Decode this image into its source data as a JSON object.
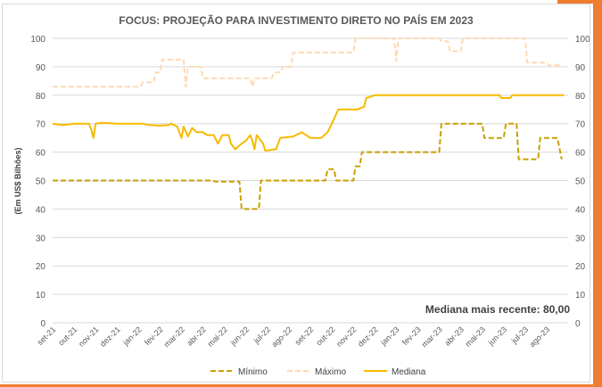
{
  "chart_data": {
    "type": "line",
    "title": "FOCUS: PROJEÇÃO PARA INVESTIMENTO DIRETO NO PAÍS EM 2023",
    "ylabel": "(Em US$ Bilhões)",
    "ylim": [
      0,
      100
    ],
    "yticks": [
      0,
      10,
      20,
      30,
      40,
      50,
      60,
      70,
      80,
      90,
      100
    ],
    "x_labels": [
      "set-21",
      "out-21",
      "nov-21",
      "dez-21",
      "jan-22",
      "fev-22",
      "mar-22",
      "abr-22",
      "mai-22",
      "jun-22",
      "jul-22",
      "ago-22",
      "set-22",
      "out-22",
      "nov-22",
      "dez-22",
      "jan-23",
      "fev-23",
      "mar-23",
      "abr-23",
      "mai-23",
      "jun-23",
      "jul-23",
      "ago-23"
    ],
    "annotation": "Mediana mais recente: 80,00",
    "grid": true,
    "legend": "bottom",
    "series": [
      {
        "name": "Mínimo",
        "color": "#C9A000",
        "style": "dashed",
        "points": [
          [
            0,
            50
          ],
          [
            7.4,
            50
          ],
          [
            7.6,
            49.6
          ],
          [
            8.7,
            49.6
          ],
          [
            8.8,
            40
          ],
          [
            9.6,
            40
          ],
          [
            9.7,
            50
          ],
          [
            12.7,
            50
          ],
          [
            12.8,
            54
          ],
          [
            13.1,
            54
          ],
          [
            13.2,
            50
          ],
          [
            14.0,
            50
          ],
          [
            14.1,
            55
          ],
          [
            14.3,
            55
          ],
          [
            14.4,
            60
          ],
          [
            18.0,
            60
          ],
          [
            18.1,
            70
          ],
          [
            20.0,
            70
          ],
          [
            20.1,
            65
          ],
          [
            21.0,
            65
          ],
          [
            21.1,
            70
          ],
          [
            21.6,
            70
          ],
          [
            21.7,
            57.5
          ],
          [
            22.6,
            57.5
          ],
          [
            22.7,
            65
          ],
          [
            23.5,
            65
          ],
          [
            23.7,
            57.5
          ]
        ]
      },
      {
        "name": "Máximo",
        "color": "#FFD9B3",
        "style": "dashed",
        "points": [
          [
            0,
            83
          ],
          [
            4.1,
            83
          ],
          [
            4.2,
            84.5
          ],
          [
            4.7,
            84.5
          ],
          [
            4.8,
            88
          ],
          [
            5.0,
            88
          ],
          [
            5.1,
            92.5
          ],
          [
            6.1,
            92.5
          ],
          [
            6.2,
            83
          ],
          [
            6.3,
            90
          ],
          [
            6.9,
            90
          ],
          [
            7.0,
            86
          ],
          [
            9.2,
            86
          ],
          [
            9.3,
            83
          ],
          [
            9.4,
            86
          ],
          [
            10.2,
            86
          ],
          [
            10.3,
            88
          ],
          [
            10.6,
            88
          ],
          [
            10.7,
            90
          ],
          [
            11.1,
            90
          ],
          [
            11.2,
            95
          ],
          [
            14.0,
            95
          ],
          [
            14.1,
            100
          ],
          [
            15.9,
            100
          ],
          [
            16.0,
            92
          ],
          [
            16.1,
            100
          ],
          [
            18.0,
            100
          ],
          [
            18.1,
            99
          ],
          [
            18.4,
            99
          ],
          [
            18.5,
            95.5
          ],
          [
            19.0,
            95.5
          ],
          [
            19.1,
            100
          ],
          [
            22.0,
            100
          ],
          [
            22.1,
            91.5
          ],
          [
            23.0,
            91.5
          ],
          [
            23.1,
            90.5
          ],
          [
            23.6,
            90.5
          ],
          [
            23.7,
            90
          ]
        ]
      },
      {
        "name": "Mediana",
        "color": "#F5BA00",
        "style": "solid",
        "points": [
          [
            0,
            70
          ],
          [
            0.5,
            69.5
          ],
          [
            1.0,
            70
          ],
          [
            1.7,
            70
          ],
          [
            1.8,
            68
          ],
          [
            1.9,
            65
          ],
          [
            2.0,
            70
          ],
          [
            2.3,
            70.3
          ],
          [
            3.0,
            70
          ],
          [
            4.2,
            70
          ],
          [
            4.5,
            69.5
          ],
          [
            5.0,
            69.3
          ],
          [
            5.4,
            69.5
          ],
          [
            5.5,
            70
          ],
          [
            5.8,
            69
          ],
          [
            6.0,
            65
          ],
          [
            6.1,
            69
          ],
          [
            6.3,
            65.5
          ],
          [
            6.5,
            68.5
          ],
          [
            6.7,
            67
          ],
          [
            7.0,
            67
          ],
          [
            7.2,
            66
          ],
          [
            7.5,
            66
          ],
          [
            7.7,
            63
          ],
          [
            7.9,
            66
          ],
          [
            8.2,
            66
          ],
          [
            8.3,
            63
          ],
          [
            8.5,
            61
          ],
          [
            8.8,
            63
          ],
          [
            9.0,
            64
          ],
          [
            9.2,
            66
          ],
          [
            9.3,
            64
          ],
          [
            9.4,
            61
          ],
          [
            9.5,
            66
          ],
          [
            9.8,
            63
          ],
          [
            9.9,
            60.5
          ],
          [
            10.4,
            61
          ],
          [
            10.6,
            65
          ],
          [
            11.2,
            65.5
          ],
          [
            11.6,
            67
          ],
          [
            12.0,
            65
          ],
          [
            12.5,
            65
          ],
          [
            12.8,
            67
          ],
          [
            13.0,
            70
          ],
          [
            13.3,
            75
          ],
          [
            14.2,
            75
          ],
          [
            14.5,
            76
          ],
          [
            14.6,
            79
          ],
          [
            15.0,
            80
          ],
          [
            20.8,
            80
          ],
          [
            20.9,
            79
          ],
          [
            21.3,
            79
          ],
          [
            21.4,
            80
          ],
          [
            23.8,
            80
          ]
        ]
      }
    ]
  }
}
